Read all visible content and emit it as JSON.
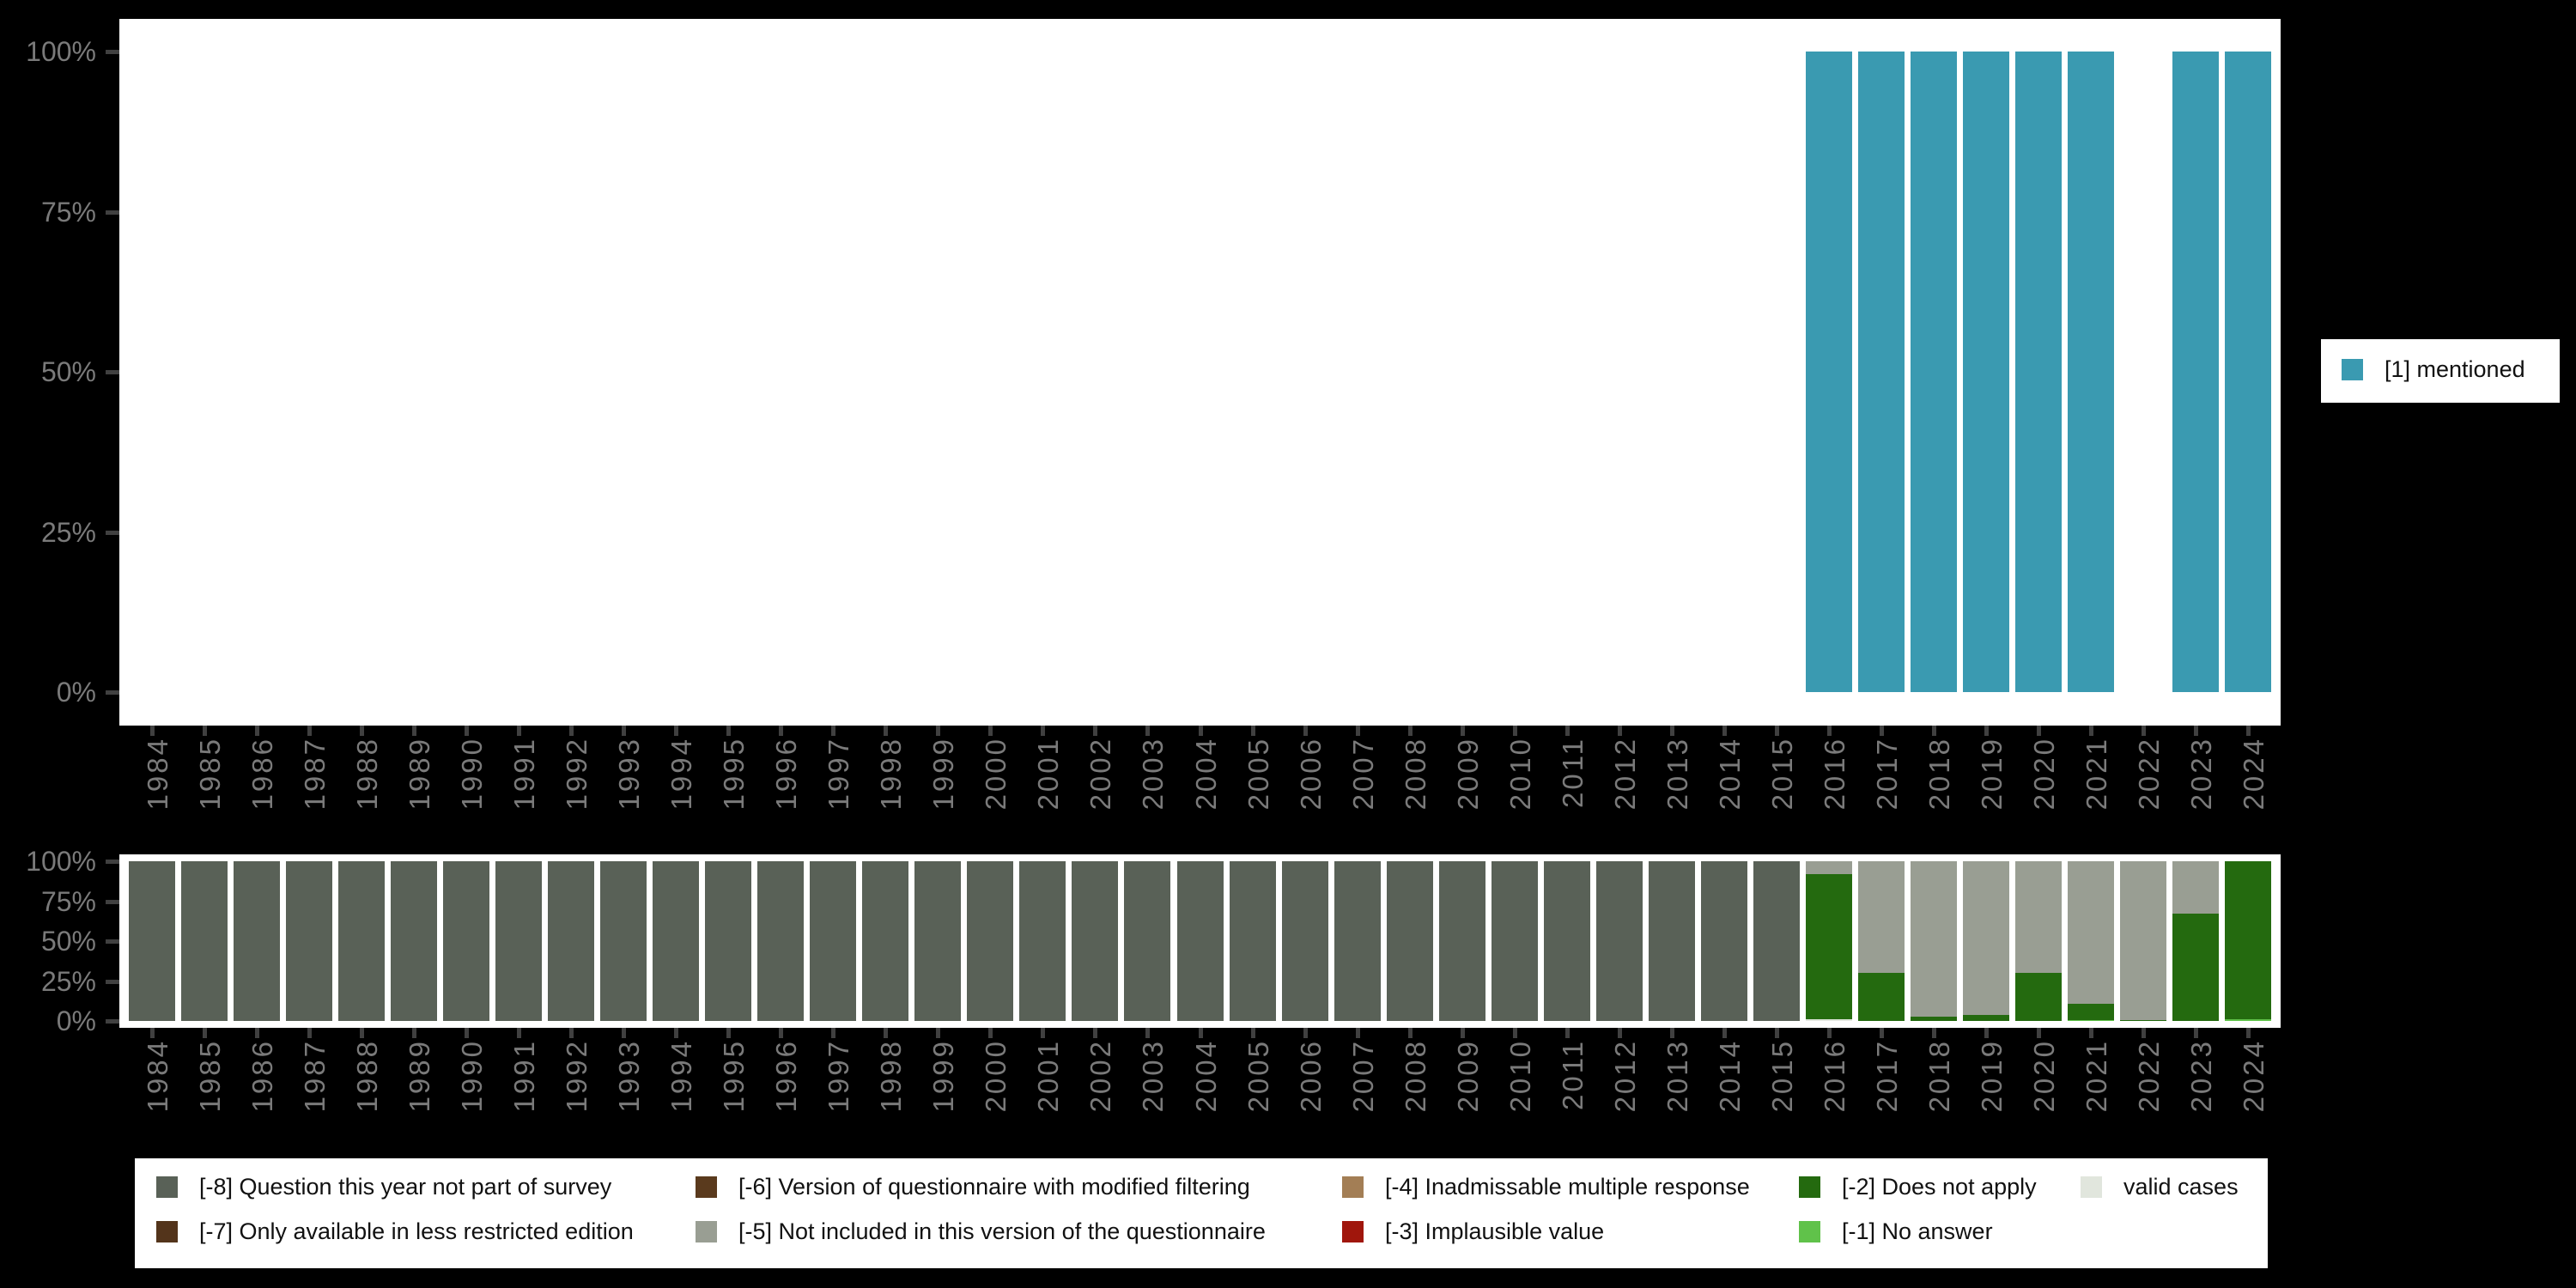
{
  "app": {
    "background": "#000000",
    "plot_background": "#ffffff",
    "axis_text_color": "#7a7a7a",
    "tick_color": "#404040"
  },
  "chart_data": [
    {
      "name": "mentioned-by-year",
      "type": "bar",
      "title": "",
      "xlabel": "",
      "ylabel": "",
      "ylim": [
        0,
        100
      ],
      "y_ticks": [
        "100%",
        "75%",
        "50%",
        "25%",
        "0%"
      ],
      "grid": false,
      "legend_position": "right",
      "categories": [
        "1984",
        "1985",
        "1986",
        "1987",
        "1988",
        "1989",
        "1990",
        "1991",
        "1992",
        "1993",
        "1994",
        "1995",
        "1996",
        "1997",
        "1998",
        "1999",
        "2000",
        "2001",
        "2002",
        "2003",
        "2004",
        "2005",
        "2006",
        "2007",
        "2008",
        "2009",
        "2010",
        "2011",
        "2012",
        "2013",
        "2014",
        "2015",
        "2016",
        "2017",
        "2018",
        "2019",
        "2020",
        "2021",
        "2022",
        "2023",
        "2024"
      ],
      "series": [
        {
          "name": "[1] mentioned",
          "color": "#3a9ab1",
          "values": [
            null,
            null,
            null,
            null,
            null,
            null,
            null,
            null,
            null,
            null,
            null,
            null,
            null,
            null,
            null,
            null,
            null,
            null,
            null,
            null,
            null,
            null,
            null,
            null,
            null,
            null,
            null,
            null,
            null,
            null,
            null,
            null,
            100,
            100,
            100,
            100,
            100,
            100,
            null,
            100,
            100
          ]
        }
      ],
      "legend": [
        {
          "label": "[1] mentioned",
          "color": "#3a9ab1"
        }
      ]
    },
    {
      "name": "missing-values-by-year",
      "type": "stacked-bar",
      "title": "",
      "xlabel": "",
      "ylabel": "",
      "ylim": [
        0,
        100
      ],
      "y_ticks": [
        "100%",
        "75%",
        "50%",
        "25%",
        "0%"
      ],
      "grid": false,
      "legend_position": "bottom",
      "segment_order": "top-to-bottom",
      "categories": [
        "1984",
        "1985",
        "1986",
        "1987",
        "1988",
        "1989",
        "1990",
        "1991",
        "1992",
        "1993",
        "1994",
        "1995",
        "1996",
        "1997",
        "1998",
        "1999",
        "2000",
        "2001",
        "2002",
        "2003",
        "2004",
        "2005",
        "2006",
        "2007",
        "2008",
        "2009",
        "2010",
        "2011",
        "2012",
        "2013",
        "2014",
        "2015",
        "2016",
        "2017",
        "2018",
        "2019",
        "2020",
        "2021",
        "2022",
        "2023",
        "2024"
      ],
      "codes": {
        "-8": {
          "label": "[-8] Question this year not part of survey",
          "color": "#596157"
        },
        "-7": {
          "label": "[-7] Only available in less restricted edition",
          "color": "#53341b"
        },
        "-6": {
          "label": "[-6] Version of questionnaire with modified filtering",
          "color": "#5a3a1d"
        },
        "-5": {
          "label": "[-5] Not included in this version of the questionnaire",
          "color": "#999e93"
        },
        "-4": {
          "label": "[-4] Inadmissable multiple response",
          "color": "#a37e55"
        },
        "-3": {
          "label": "[-3] Implausible value",
          "color": "#a0160c"
        },
        "-2": {
          "label": "[-2] Does not apply",
          "color": "#246a0f"
        },
        "-1": {
          "label": "[-1] No answer",
          "color": "#60c24a"
        },
        "valid": {
          "label": "valid cases",
          "color": "#e1e6dd"
        }
      },
      "legend_columns": [
        [
          "-8",
          "-7"
        ],
        [
          "-6",
          "-5"
        ],
        [
          "-4",
          "-3"
        ],
        [
          "-2",
          "-1"
        ],
        [
          "valid"
        ]
      ],
      "stacks": [
        [
          [
            "-8",
            100
          ]
        ],
        [
          [
            "-8",
            100
          ]
        ],
        [
          [
            "-8",
            100
          ]
        ],
        [
          [
            "-8",
            100
          ]
        ],
        [
          [
            "-8",
            100
          ]
        ],
        [
          [
            "-8",
            100
          ]
        ],
        [
          [
            "-8",
            100
          ]
        ],
        [
          [
            "-8",
            100
          ]
        ],
        [
          [
            "-8",
            100
          ]
        ],
        [
          [
            "-8",
            100
          ]
        ],
        [
          [
            "-8",
            100
          ]
        ],
        [
          [
            "-8",
            100
          ]
        ],
        [
          [
            "-8",
            100
          ]
        ],
        [
          [
            "-8",
            100
          ]
        ],
        [
          [
            "-8",
            100
          ]
        ],
        [
          [
            "-8",
            100
          ]
        ],
        [
          [
            "-8",
            100
          ]
        ],
        [
          [
            "-8",
            100
          ]
        ],
        [
          [
            "-8",
            100
          ]
        ],
        [
          [
            "-8",
            100
          ]
        ],
        [
          [
            "-8",
            100
          ]
        ],
        [
          [
            "-8",
            100
          ]
        ],
        [
          [
            "-8",
            100
          ]
        ],
        [
          [
            "-8",
            100
          ]
        ],
        [
          [
            "-8",
            100
          ]
        ],
        [
          [
            "-8",
            100
          ]
        ],
        [
          [
            "-8",
            100
          ]
        ],
        [
          [
            "-8",
            100
          ]
        ],
        [
          [
            "-8",
            100
          ]
        ],
        [
          [
            "-8",
            100
          ]
        ],
        [
          [
            "-8",
            100
          ]
        ],
        [
          [
            "-8",
            100
          ]
        ],
        [
          [
            "-5",
            8
          ],
          [
            "-2",
            91
          ],
          [
            "valid",
            1
          ]
        ],
        [
          [
            "-5",
            70
          ],
          [
            "-2",
            30
          ]
        ],
        [
          [
            "-5",
            97.5
          ],
          [
            "-2",
            2.5
          ]
        ],
        [
          [
            "-5",
            96.5
          ],
          [
            "-2",
            3.5
          ]
        ],
        [
          [
            "-5",
            70
          ],
          [
            "-2",
            30
          ]
        ],
        [
          [
            "-5",
            89.5
          ],
          [
            "-2",
            10
          ],
          [
            "-1",
            0.5
          ]
        ],
        [
          [
            "-5",
            99.5
          ],
          [
            "-2",
            0.5
          ]
        ],
        [
          [
            "-5",
            33
          ],
          [
            "-2",
            67
          ]
        ],
        [
          [
            "-2",
            99
          ],
          [
            "-1",
            1
          ]
        ]
      ]
    }
  ]
}
